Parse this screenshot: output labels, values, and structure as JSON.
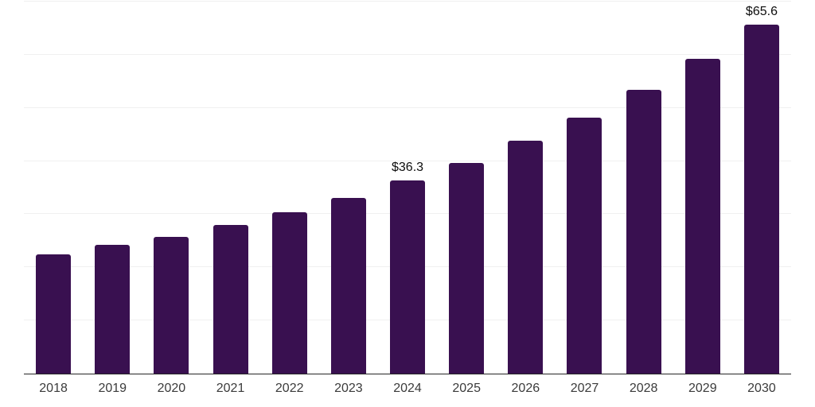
{
  "chart_data": {
    "type": "bar",
    "title": "",
    "xlabel": "",
    "ylabel": "",
    "categories": [
      "2018",
      "2019",
      "2020",
      "2021",
      "2022",
      "2023",
      "2024",
      "2025",
      "2026",
      "2027",
      "2028",
      "2029",
      "2030"
    ],
    "values": [
      22.5,
      24.3,
      25.8,
      27.9,
      30.4,
      33.1,
      36.3,
      39.7,
      43.8,
      48.1,
      53.4,
      59.2,
      65.6
    ],
    "data_labels": [
      null,
      null,
      null,
      null,
      null,
      null,
      "$36.3",
      null,
      null,
      null,
      null,
      null,
      "$65.6"
    ],
    "ylim": [
      0,
      70
    ],
    "gridline_values": [
      10,
      20,
      30,
      40,
      50,
      60,
      70
    ],
    "grid": "horizontal",
    "legend_position": "none",
    "colors": {
      "bar": "#391050",
      "gridline": "#f0f0f0",
      "axis_line": "#262626",
      "tick_label": "#3b3b3b",
      "data_label": "#0d0d0d",
      "background": "#ffffff"
    }
  }
}
